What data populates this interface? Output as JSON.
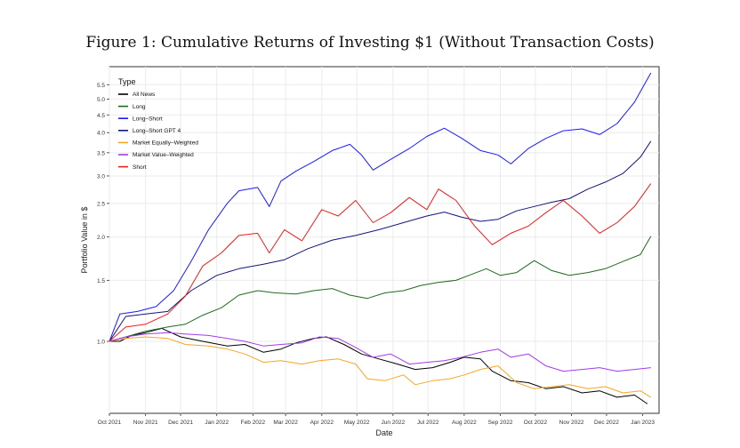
{
  "figure_title": "Figure 1: Cumulative Returns of Investing $1 (Without Transaction Costs)",
  "chart_data": {
    "type": "line",
    "xlabel": "Date",
    "ylabel": "Portfolio Value in $",
    "y_scale": "log",
    "ylim": [
      0.62,
      6.2
    ],
    "x_range": [
      "2021-10-01",
      "2023-01-15"
    ],
    "grid": true,
    "legend_title": "Type",
    "legend_position": "top-left",
    "y_ticks": [
      1.0,
      1.5,
      2.0,
      2.5,
      3.0,
      3.5,
      4.0,
      4.5,
      5.0,
      5.5
    ],
    "y_tick_labels": [
      "1.0",
      "1.5",
      "2.0",
      "2.5",
      "3.0",
      "3.5",
      "4.0",
      "4.5",
      "5.0",
      "5.5"
    ],
    "x_ticks": [
      "2021-10-01",
      "2021-11-01",
      "2021-12-01",
      "2022-01-01",
      "2022-02-01",
      "2022-03-01",
      "2022-04-01",
      "2022-05-01",
      "2022-06-01",
      "2022-07-01",
      "2022-08-01",
      "2022-09-01",
      "2022-10-01",
      "2022-11-01",
      "2022-12-01",
      "2023-01-01"
    ],
    "x_tick_labels": [
      "Oct 2021",
      "Nov 2021",
      "Dec 2021",
      "Jan 2022",
      "Feb 2022",
      "Mar 2022",
      "Apr 2022",
      "May 2022",
      "Jun 2022",
      "Jul 2022",
      "Aug 2022",
      "Sep 2022",
      "Oct 2022",
      "Nov 2022",
      "Dec 2022",
      "Jan 2023"
    ],
    "series": [
      {
        "name": "All News",
        "color": "#000000",
        "points": [
          [
            "2021-10-01",
            1.0
          ],
          [
            "2021-10-10",
            1.0
          ],
          [
            "2021-10-20",
            1.04
          ],
          [
            "2021-11-01",
            1.06
          ],
          [
            "2021-11-15",
            1.09
          ],
          [
            "2021-12-01",
            1.03
          ],
          [
            "2021-12-20",
            1.0
          ],
          [
            "2022-01-10",
            0.97
          ],
          [
            "2022-01-25",
            0.98
          ],
          [
            "2022-02-10",
            0.93
          ],
          [
            "2022-02-25",
            0.95
          ],
          [
            "2022-03-10",
            0.99
          ],
          [
            "2022-03-25",
            1.02
          ],
          [
            "2022-04-05",
            1.03
          ],
          [
            "2022-04-20",
            0.98
          ],
          [
            "2022-05-05",
            0.92
          ],
          [
            "2022-05-20",
            0.89
          ],
          [
            "2022-06-05",
            0.86
          ],
          [
            "2022-06-20",
            0.83
          ],
          [
            "2022-07-05",
            0.84
          ],
          [
            "2022-07-20",
            0.87
          ],
          [
            "2022-08-01",
            0.9
          ],
          [
            "2022-08-15",
            0.89
          ],
          [
            "2022-08-25",
            0.82
          ],
          [
            "2022-09-10",
            0.77
          ],
          [
            "2022-09-25",
            0.76
          ],
          [
            "2022-10-10",
            0.73
          ],
          [
            "2022-10-25",
            0.74
          ],
          [
            "2022-11-10",
            0.71
          ],
          [
            "2022-11-25",
            0.72
          ],
          [
            "2022-12-10",
            0.69
          ],
          [
            "2022-12-25",
            0.7
          ],
          [
            "2023-01-05",
            0.66
          ]
        ]
      },
      {
        "name": "Long",
        "color": "#1e6b1e",
        "points": [
          [
            "2021-10-01",
            1.0
          ],
          [
            "2021-10-15",
            1.03
          ],
          [
            "2021-11-01",
            1.07
          ],
          [
            "2021-11-20",
            1.1
          ],
          [
            "2021-12-05",
            1.12
          ],
          [
            "2021-12-20",
            1.19
          ],
          [
            "2022-01-05",
            1.25
          ],
          [
            "2022-01-20",
            1.36
          ],
          [
            "2022-02-05",
            1.4
          ],
          [
            "2022-02-20",
            1.38
          ],
          [
            "2022-03-10",
            1.37
          ],
          [
            "2022-03-25",
            1.4
          ],
          [
            "2022-04-10",
            1.42
          ],
          [
            "2022-04-25",
            1.36
          ],
          [
            "2022-05-10",
            1.33
          ],
          [
            "2022-05-25",
            1.38
          ],
          [
            "2022-06-10",
            1.4
          ],
          [
            "2022-06-25",
            1.45
          ],
          [
            "2022-07-10",
            1.48
          ],
          [
            "2022-07-25",
            1.5
          ],
          [
            "2022-08-05",
            1.55
          ],
          [
            "2022-08-20",
            1.62
          ],
          [
            "2022-09-01",
            1.55
          ],
          [
            "2022-09-15",
            1.58
          ],
          [
            "2022-09-30",
            1.71
          ],
          [
            "2022-10-15",
            1.6
          ],
          [
            "2022-10-30",
            1.55
          ],
          [
            "2022-11-15",
            1.58
          ],
          [
            "2022-11-30",
            1.62
          ],
          [
            "2022-12-15",
            1.7
          ],
          [
            "2022-12-30",
            1.78
          ],
          [
            "2023-01-08",
            2.01
          ]
        ]
      },
      {
        "name": "Long–Short",
        "color": "#1a1aff",
        "points": [
          [
            "2021-10-01",
            1.0
          ],
          [
            "2021-10-10",
            1.2
          ],
          [
            "2021-10-25",
            1.22
          ],
          [
            "2021-11-10",
            1.26
          ],
          [
            "2021-11-25",
            1.4
          ],
          [
            "2021-12-10",
            1.7
          ],
          [
            "2021-12-25",
            2.1
          ],
          [
            "2022-01-10",
            2.5
          ],
          [
            "2022-01-20",
            2.72
          ],
          [
            "2022-02-05",
            2.78
          ],
          [
            "2022-02-15",
            2.45
          ],
          [
            "2022-02-25",
            2.9
          ],
          [
            "2022-03-10",
            3.1
          ],
          [
            "2022-03-25",
            3.3
          ],
          [
            "2022-04-10",
            3.55
          ],
          [
            "2022-04-25",
            3.7
          ],
          [
            "2022-05-05",
            3.45
          ],
          [
            "2022-05-15",
            3.12
          ],
          [
            "2022-05-30",
            3.35
          ],
          [
            "2022-06-15",
            3.6
          ],
          [
            "2022-06-30",
            3.9
          ],
          [
            "2022-07-15",
            4.12
          ],
          [
            "2022-07-30",
            3.85
          ],
          [
            "2022-08-15",
            3.55
          ],
          [
            "2022-08-30",
            3.45
          ],
          [
            "2022-09-10",
            3.25
          ],
          [
            "2022-09-25",
            3.6
          ],
          [
            "2022-10-10",
            3.85
          ],
          [
            "2022-10-25",
            4.05
          ],
          [
            "2022-11-10",
            4.1
          ],
          [
            "2022-11-25",
            3.95
          ],
          [
            "2022-12-10",
            4.25
          ],
          [
            "2022-12-25",
            4.9
          ],
          [
            "2023-01-08",
            5.95
          ]
        ]
      },
      {
        "name": "Long–Short GPT 4",
        "color": "#15157a",
        "points": [
          [
            "2021-10-01",
            1.0
          ],
          [
            "2021-10-15",
            1.18
          ],
          [
            "2021-11-01",
            1.2
          ],
          [
            "2021-11-20",
            1.22
          ],
          [
            "2021-12-10",
            1.4
          ],
          [
            "2022-01-01",
            1.55
          ],
          [
            "2022-01-20",
            1.62
          ],
          [
            "2022-02-10",
            1.67
          ],
          [
            "2022-02-28",
            1.72
          ],
          [
            "2022-03-20",
            1.85
          ],
          [
            "2022-04-10",
            1.96
          ],
          [
            "2022-04-30",
            2.02
          ],
          [
            "2022-05-20",
            2.1
          ],
          [
            "2022-06-10",
            2.2
          ],
          [
            "2022-06-30",
            2.3
          ],
          [
            "2022-07-15",
            2.36
          ],
          [
            "2022-07-30",
            2.28
          ],
          [
            "2022-08-15",
            2.22
          ],
          [
            "2022-08-30",
            2.25
          ],
          [
            "2022-09-15",
            2.38
          ],
          [
            "2022-09-30",
            2.45
          ],
          [
            "2022-10-15",
            2.52
          ],
          [
            "2022-10-30",
            2.58
          ],
          [
            "2022-11-15",
            2.75
          ],
          [
            "2022-11-30",
            2.88
          ],
          [
            "2022-12-15",
            3.05
          ],
          [
            "2022-12-30",
            3.4
          ],
          [
            "2023-01-08",
            3.78
          ]
        ]
      },
      {
        "name": "Market Equally–Weighted",
        "color": "#f5a623",
        "points": [
          [
            "2021-10-01",
            1.0
          ],
          [
            "2021-10-15",
            1.02
          ],
          [
            "2021-11-01",
            1.03
          ],
          [
            "2021-11-20",
            1.02
          ],
          [
            "2021-12-05",
            0.98
          ],
          [
            "2021-12-25",
            0.97
          ],
          [
            "2022-01-10",
            0.95
          ],
          [
            "2022-01-25",
            0.92
          ],
          [
            "2022-02-10",
            0.87
          ],
          [
            "2022-02-25",
            0.88
          ],
          [
            "2022-03-15",
            0.86
          ],
          [
            "2022-03-30",
            0.88
          ],
          [
            "2022-04-15",
            0.89
          ],
          [
            "2022-04-30",
            0.86
          ],
          [
            "2022-05-10",
            0.78
          ],
          [
            "2022-05-25",
            0.77
          ],
          [
            "2022-06-10",
            0.8
          ],
          [
            "2022-06-20",
            0.75
          ],
          [
            "2022-07-05",
            0.77
          ],
          [
            "2022-07-20",
            0.78
          ],
          [
            "2022-08-01",
            0.8
          ],
          [
            "2022-08-15",
            0.83
          ],
          [
            "2022-08-30",
            0.85
          ],
          [
            "2022-09-15",
            0.76
          ],
          [
            "2022-09-30",
            0.73
          ],
          [
            "2022-10-15",
            0.74
          ],
          [
            "2022-10-30",
            0.75
          ],
          [
            "2022-11-15",
            0.73
          ],
          [
            "2022-11-30",
            0.74
          ],
          [
            "2022-12-15",
            0.71
          ],
          [
            "2022-12-30",
            0.72
          ],
          [
            "2023-01-08",
            0.69
          ]
        ]
      },
      {
        "name": "Market Value–Weighted",
        "color": "#a13ce8",
        "points": [
          [
            "2021-10-01",
            1.0
          ],
          [
            "2021-10-15",
            1.03
          ],
          [
            "2021-11-01",
            1.05
          ],
          [
            "2021-11-20",
            1.06
          ],
          [
            "2021-12-05",
            1.05
          ],
          [
            "2021-12-25",
            1.04
          ],
          [
            "2022-01-10",
            1.02
          ],
          [
            "2022-01-25",
            1.0
          ],
          [
            "2022-02-10",
            0.97
          ],
          [
            "2022-02-25",
            0.98
          ],
          [
            "2022-03-15",
            0.99
          ],
          [
            "2022-03-30",
            1.03
          ],
          [
            "2022-04-15",
            1.02
          ],
          [
            "2022-04-30",
            0.96
          ],
          [
            "2022-05-15",
            0.9
          ],
          [
            "2022-05-30",
            0.92
          ],
          [
            "2022-06-15",
            0.86
          ],
          [
            "2022-06-30",
            0.87
          ],
          [
            "2022-07-15",
            0.88
          ],
          [
            "2022-07-30",
            0.9
          ],
          [
            "2022-08-15",
            0.93
          ],
          [
            "2022-08-30",
            0.95
          ],
          [
            "2022-09-10",
            0.9
          ],
          [
            "2022-09-25",
            0.92
          ],
          [
            "2022-10-10",
            0.85
          ],
          [
            "2022-10-25",
            0.82
          ],
          [
            "2022-11-10",
            0.83
          ],
          [
            "2022-11-25",
            0.84
          ],
          [
            "2022-12-10",
            0.82
          ],
          [
            "2022-12-25",
            0.83
          ],
          [
            "2023-01-08",
            0.84
          ]
        ]
      },
      {
        "name": "Short",
        "color": "#ee1c1c",
        "points": [
          [
            "2021-10-01",
            1.0
          ],
          [
            "2021-10-15",
            1.1
          ],
          [
            "2021-11-01",
            1.12
          ],
          [
            "2021-11-20",
            1.2
          ],
          [
            "2021-12-05",
            1.35
          ],
          [
            "2021-12-20",
            1.65
          ],
          [
            "2022-01-05",
            1.8
          ],
          [
            "2022-01-20",
            2.02
          ],
          [
            "2022-02-05",
            2.05
          ],
          [
            "2022-02-15",
            1.8
          ],
          [
            "2022-02-28",
            2.1
          ],
          [
            "2022-03-15",
            1.95
          ],
          [
            "2022-04-01",
            2.4
          ],
          [
            "2022-04-15",
            2.3
          ],
          [
            "2022-04-30",
            2.55
          ],
          [
            "2022-05-15",
            2.2
          ],
          [
            "2022-05-30",
            2.35
          ],
          [
            "2022-06-15",
            2.6
          ],
          [
            "2022-06-30",
            2.4
          ],
          [
            "2022-07-10",
            2.75
          ],
          [
            "2022-07-25",
            2.55
          ],
          [
            "2022-08-10",
            2.15
          ],
          [
            "2022-08-25",
            1.9
          ],
          [
            "2022-09-10",
            2.05
          ],
          [
            "2022-09-25",
            2.15
          ],
          [
            "2022-10-10",
            2.35
          ],
          [
            "2022-10-25",
            2.55
          ],
          [
            "2022-11-10",
            2.3
          ],
          [
            "2022-11-25",
            2.05
          ],
          [
            "2022-12-10",
            2.2
          ],
          [
            "2022-12-25",
            2.45
          ],
          [
            "2023-01-08",
            2.85
          ]
        ]
      }
    ]
  }
}
